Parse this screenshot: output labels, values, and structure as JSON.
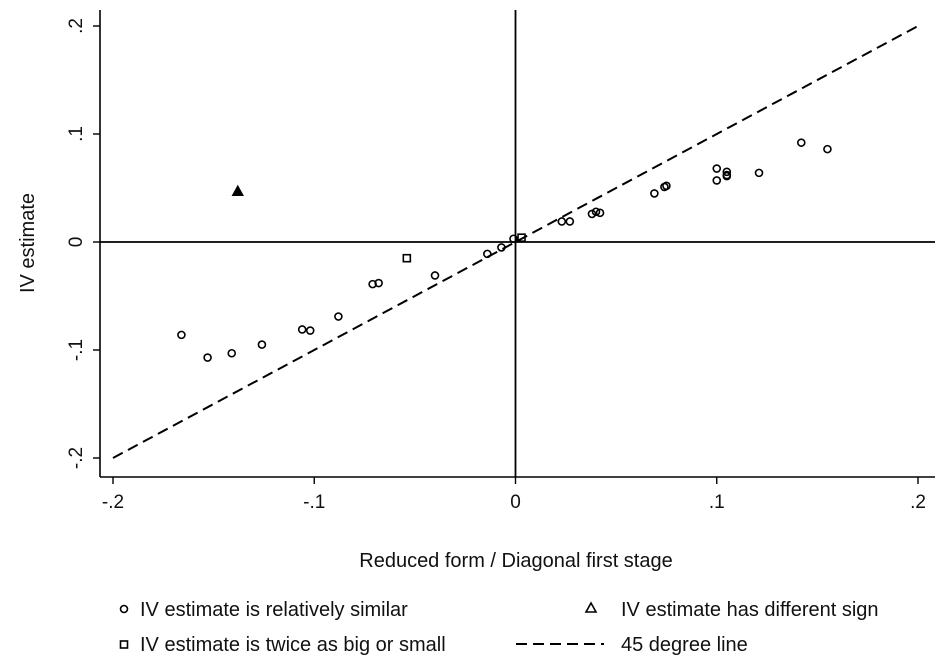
{
  "chart_data": {
    "type": "scatter",
    "xlabel": "Reduced form / Diagonal first stage",
    "ylabel": "IV estimate",
    "xlim": [
      -0.2,
      0.2
    ],
    "ylim": [
      -0.2,
      0.2
    ],
    "xticks": [
      {
        "value": -0.2,
        "label": "-.2"
      },
      {
        "value": -0.1,
        "label": "-.1"
      },
      {
        "value": 0,
        "label": "0"
      },
      {
        "value": 0.1,
        "label": ".1"
      },
      {
        "value": 0.2,
        "label": ".2"
      }
    ],
    "yticks": [
      {
        "value": -0.2,
        "label": "-.2"
      },
      {
        "value": -0.1,
        "label": "-.1"
      },
      {
        "value": 0,
        "label": "0"
      },
      {
        "value": 0.1,
        "label": ".1"
      },
      {
        "value": 0.2,
        "label": ".2"
      }
    ],
    "grid": false,
    "reference_lines": [
      "x=0",
      "y=0"
    ],
    "legend_position": "bottom",
    "series": [
      {
        "name": "IV estimate is relatively similar",
        "marker": "circle",
        "points": [
          [
            -0.166,
            -0.086
          ],
          [
            -0.153,
            -0.107
          ],
          [
            -0.141,
            -0.103
          ],
          [
            -0.126,
            -0.095
          ],
          [
            -0.106,
            -0.081
          ],
          [
            -0.102,
            -0.082
          ],
          [
            -0.088,
            -0.069
          ],
          [
            -0.071,
            -0.039
          ],
          [
            -0.068,
            -0.038
          ],
          [
            -0.04,
            -0.031
          ],
          [
            -0.014,
            -0.011
          ],
          [
            -0.007,
            -0.005
          ],
          [
            -0.001,
            0.003
          ],
          [
            0.023,
            0.019
          ],
          [
            0.027,
            0.019
          ],
          [
            0.038,
            0.026
          ],
          [
            0.04,
            0.028
          ],
          [
            0.042,
            0.027
          ],
          [
            0.069,
            0.045
          ],
          [
            0.074,
            0.051
          ],
          [
            0.075,
            0.052
          ],
          [
            0.1,
            0.068
          ],
          [
            0.1,
            0.057
          ],
          [
            0.105,
            0.065
          ],
          [
            0.105,
            0.061
          ],
          [
            0.105,
            0.062
          ],
          [
            0.121,
            0.064
          ],
          [
            0.142,
            0.092
          ],
          [
            0.155,
            0.086
          ]
        ]
      },
      {
        "name": "IV estimate has different sign",
        "marker": "triangle",
        "points": [
          [
            -0.138,
            0.047
          ]
        ]
      },
      {
        "name": "IV estimate is twice as big or small",
        "marker": "square",
        "points": [
          [
            -0.054,
            -0.015
          ],
          [
            0.003,
            0.004
          ]
        ]
      },
      {
        "name": "45 degree line",
        "marker": "dashed-line",
        "points": [
          [
            -0.2,
            -0.2
          ],
          [
            0.2,
            0.2
          ]
        ]
      }
    ]
  }
}
